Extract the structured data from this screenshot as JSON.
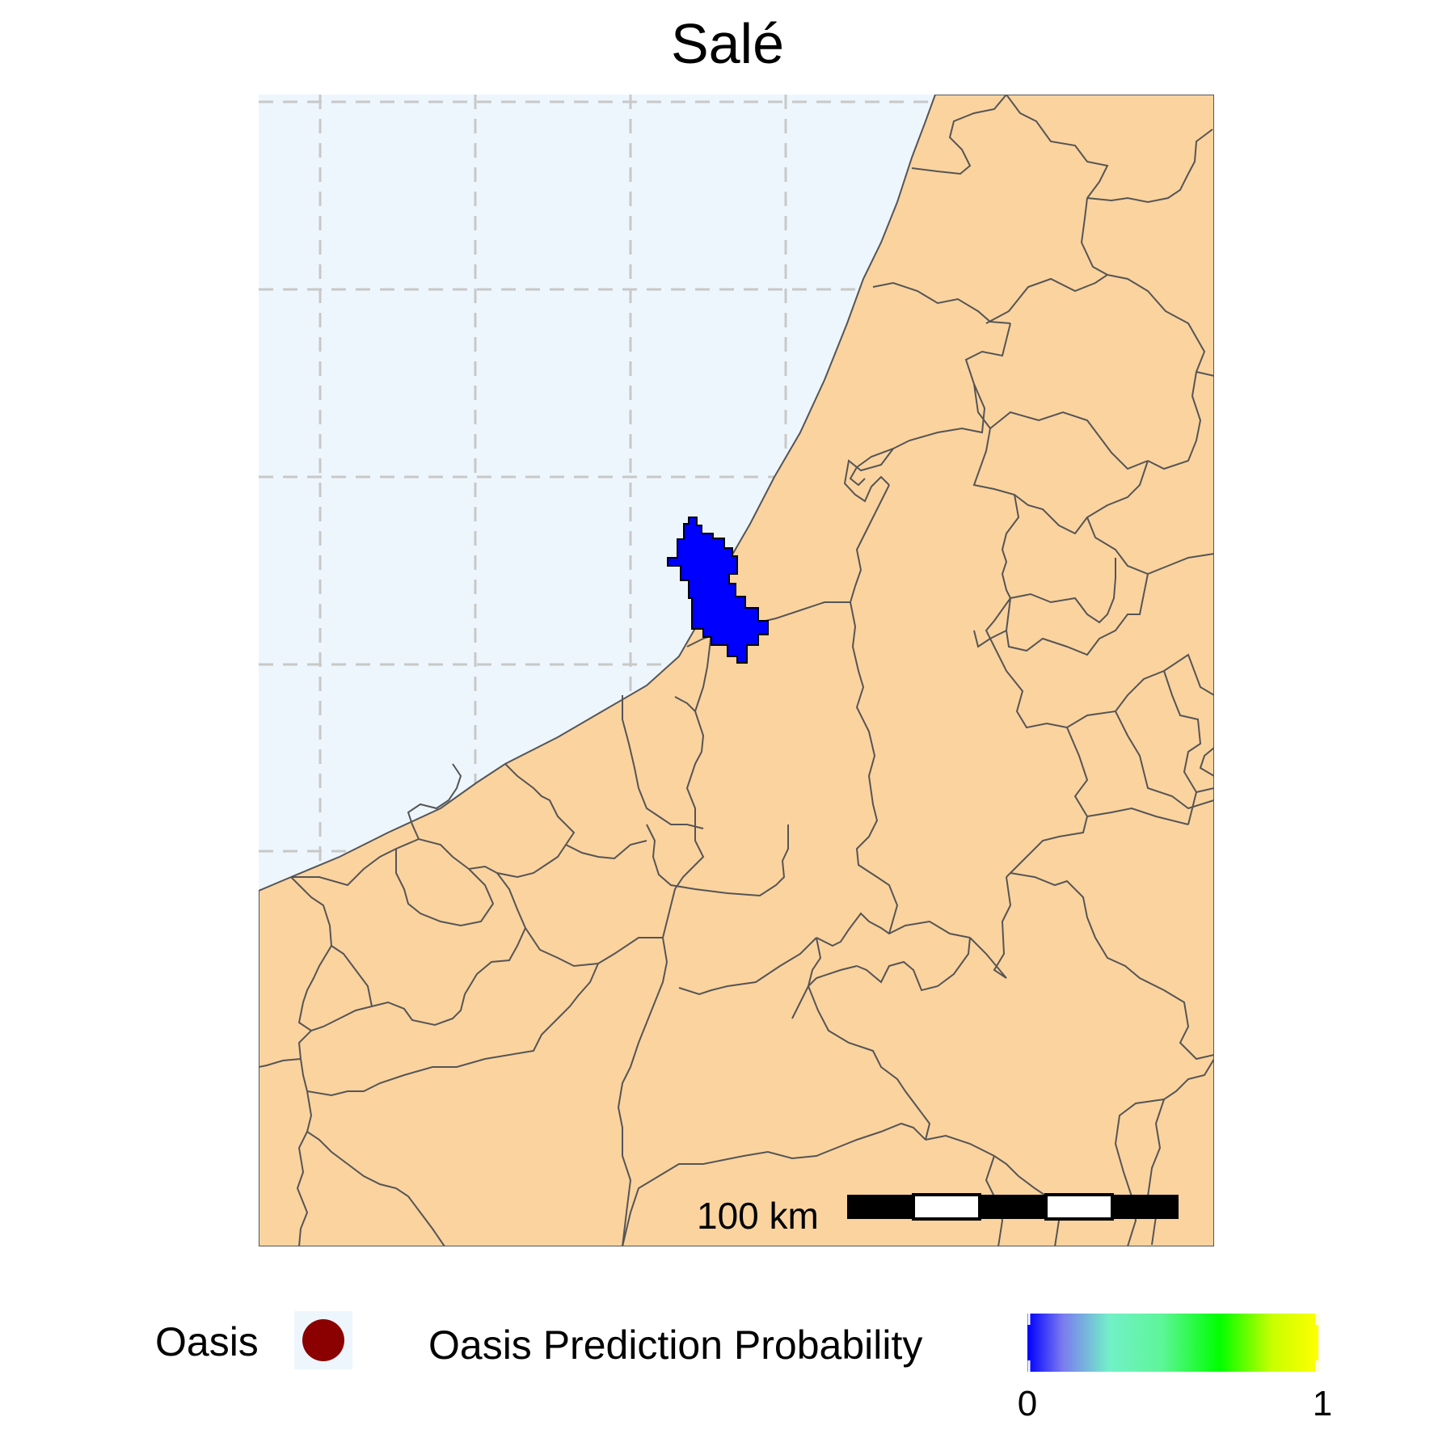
{
  "title": "Salé",
  "colors": {
    "sea": "#eef6fd",
    "land": "#fbd39f",
    "border": "#555555",
    "graticule": "#c8c8c8",
    "prediction": "#0000ff",
    "oasis_point": "#8b0000",
    "colorbar_stops": [
      "#0000ff",
      "#7a7af0",
      "#72f0c8",
      "#5ef59a",
      "#00ff00",
      "#c8ff00",
      "#ffff00"
    ]
  },
  "map": {
    "predicted_area": "Salé",
    "prediction_probability_shown": 0
  },
  "scale_bar": {
    "label": "100 km",
    "segments": [
      "black",
      "white",
      "black",
      "white",
      "black"
    ]
  },
  "legend": {
    "oasis_label": "Oasis",
    "oasis_icon": "filled-circle",
    "probability_label": "Oasis Prediction Probability",
    "probability_min": "0",
    "probability_max": "1"
  }
}
